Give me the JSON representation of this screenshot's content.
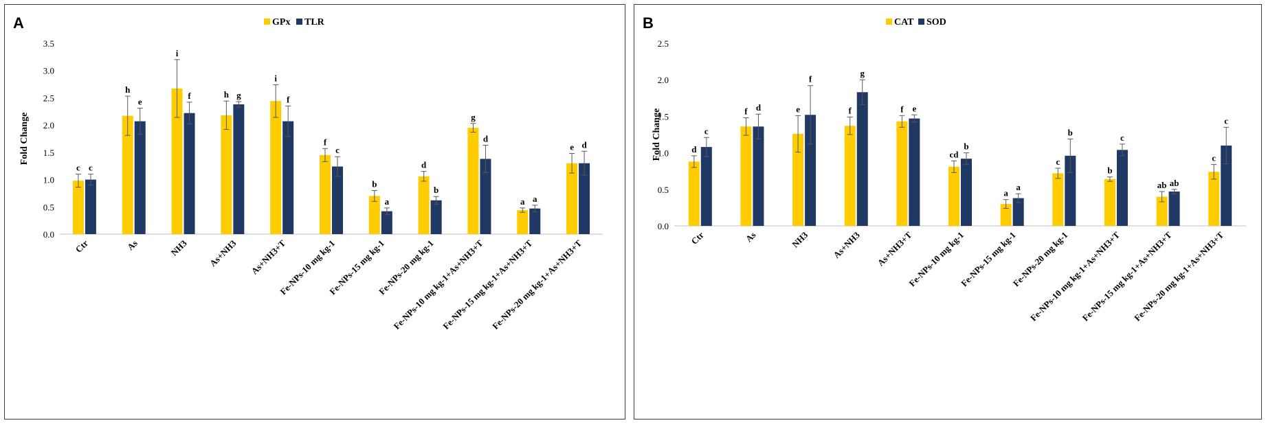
{
  "colors": {
    "series1": "#FFCC00",
    "series2": "#203864",
    "axis": "#bfbfbf",
    "error": "#595959"
  },
  "chart_data": [
    {
      "type": "bar",
      "panel_label": "A",
      "title": "",
      "xlabel": "",
      "ylabel": "Fold Change",
      "ylim": [
        0,
        3.5
      ],
      "yticks": [
        "0.0",
        "0.5",
        "1.0",
        "1.5",
        "2.0",
        "2.5",
        "3.0",
        "3.5"
      ],
      "grid": false,
      "legend_position": "top-center",
      "categories": [
        "Ctr",
        "As",
        "NH3",
        "As+NH3",
        "As+NH3+T",
        "Fe-NPs-10 mg kg-1",
        "Fe-NPs-15 mg kg-1",
        "Fe-NPs-20 mg kg-1",
        "Fe-NPs-10 mg kg-1+As+NH3+T",
        "Fe-NPs-15 mg kg-1+As+NH3+T",
        "Fe-NPs-20 mg kg-1+As+NH3+T"
      ],
      "series": [
        {
          "name": "GPx",
          "values": [
            0.98,
            2.17,
            2.67,
            2.18,
            2.44,
            1.45,
            0.7,
            1.06,
            1.95,
            0.44,
            1.3
          ],
          "errors": [
            0.12,
            0.36,
            0.53,
            0.26,
            0.3,
            0.12,
            0.1,
            0.09,
            0.08,
            0.04,
            0.18
          ],
          "letters": [
            "c",
            "h",
            "i",
            "h",
            "i",
            "f",
            "b",
            "d",
            "g",
            "a",
            "e"
          ]
        },
        {
          "name": "TLR",
          "values": [
            1.0,
            2.07,
            2.22,
            2.38,
            2.07,
            1.24,
            0.42,
            0.62,
            1.38,
            0.47,
            1.3
          ],
          "errors": [
            0.1,
            0.24,
            0.2,
            0.05,
            0.28,
            0.18,
            0.06,
            0.07,
            0.25,
            0.06,
            0.22
          ],
          "letters": [
            "c",
            "e",
            "f",
            "g",
            "f",
            "c",
            "a",
            "b",
            "d",
            "a",
            "d"
          ]
        }
      ]
    },
    {
      "type": "bar",
      "panel_label": "B",
      "title": "",
      "xlabel": "",
      "ylabel": "Fold Change",
      "ylim": [
        0,
        2.5
      ],
      "yticks": [
        "0.0",
        "0.5",
        "1.0",
        "1.5",
        "2.0",
        "2.5"
      ],
      "grid": false,
      "legend_position": "top-center",
      "categories": [
        "Ctr",
        "As",
        "NH3",
        "As+NH3",
        "As+NH3+T",
        "Fe-NPs-10 mg kg-1",
        "Fe-NPs-15 mg kg-1",
        "Fe-NPs-20 mg kg-1",
        "Fe-NPs-10 mg kg-1+As+NH3+T",
        "Fe-NPs-15 mg kg-1+As+NH3+T",
        "Fe-NPs-20 mg kg-1+As+NH3+T"
      ],
      "series": [
        {
          "name": "CAT",
          "values": [
            0.88,
            1.36,
            1.26,
            1.37,
            1.43,
            0.81,
            0.3,
            0.72,
            0.64,
            0.4,
            0.74
          ],
          "errors": [
            0.08,
            0.12,
            0.25,
            0.12,
            0.08,
            0.08,
            0.06,
            0.07,
            0.03,
            0.07,
            0.1
          ],
          "letters": [
            "d",
            "f",
            "e",
            "f",
            "f",
            "cd",
            "a",
            "c",
            "b",
            "ab",
            "c"
          ]
        },
        {
          "name": "SOD",
          "values": [
            1.08,
            1.36,
            1.52,
            1.83,
            1.47,
            0.92,
            0.38,
            0.96,
            1.04,
            0.47,
            1.1
          ],
          "errors": [
            0.13,
            0.17,
            0.4,
            0.17,
            0.05,
            0.08,
            0.06,
            0.23,
            0.08,
            0.03,
            0.25
          ],
          "letters": [
            "c",
            "d",
            "f",
            "g",
            "e",
            "b",
            "a",
            "b",
            "c",
            "ab",
            "c"
          ]
        }
      ]
    }
  ]
}
